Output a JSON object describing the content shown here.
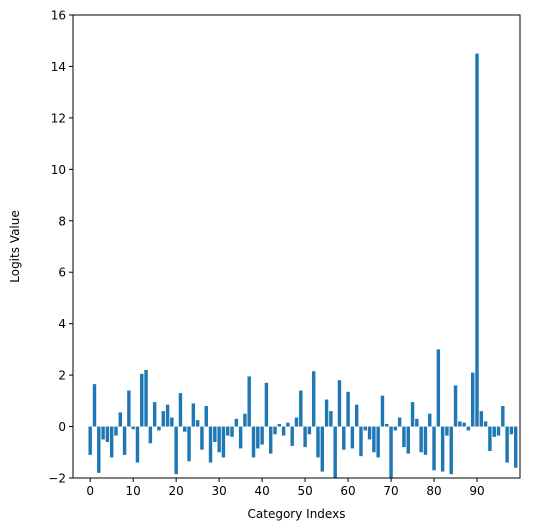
{
  "chart_data": {
    "type": "bar",
    "xlabel": "Category Indexs",
    "ylabel": "Logits Value",
    "ylim": [
      -2,
      16
    ],
    "xlim": [
      -4,
      100
    ],
    "yticks": [
      -2,
      0,
      2,
      4,
      6,
      8,
      10,
      12,
      14,
      16
    ],
    "xticks": [
      0,
      10,
      20,
      30,
      40,
      50,
      60,
      70,
      80,
      90
    ],
    "grid": false,
    "color": "#1f77b4",
    "x": [
      0,
      1,
      2,
      3,
      4,
      5,
      6,
      7,
      8,
      9,
      10,
      11,
      12,
      13,
      14,
      15,
      16,
      17,
      18,
      19,
      20,
      21,
      22,
      23,
      24,
      25,
      26,
      27,
      28,
      29,
      30,
      31,
      32,
      33,
      34,
      35,
      36,
      37,
      38,
      39,
      40,
      41,
      42,
      43,
      44,
      45,
      46,
      47,
      48,
      49,
      50,
      51,
      52,
      53,
      54,
      55,
      56,
      57,
      58,
      59,
      60,
      61,
      62,
      63,
      64,
      65,
      66,
      67,
      68,
      69,
      70,
      71,
      72,
      73,
      74,
      75,
      76,
      77,
      78,
      79,
      80,
      81,
      82,
      83,
      84,
      85,
      86,
      87,
      88,
      89,
      90,
      91,
      92,
      93,
      94,
      95,
      96,
      97,
      98,
      99
    ],
    "values": [
      -1.1,
      1.65,
      -1.8,
      -0.5,
      -0.6,
      -1.2,
      -0.35,
      0.55,
      -1.1,
      1.4,
      -0.1,
      -1.4,
      2.05,
      2.2,
      -0.65,
      0.95,
      -0.15,
      0.6,
      0.85,
      0.35,
      -1.85,
      1.3,
      -0.2,
      -1.35,
      0.9,
      0.25,
      -0.9,
      0.8,
      -1.4,
      -0.6,
      -1.0,
      -1.2,
      -0.35,
      -0.4,
      0.3,
      -0.85,
      0.5,
      1.95,
      -1.2,
      -0.85,
      -0.7,
      1.7,
      -1.05,
      -0.3,
      0.1,
      -0.35,
      0.15,
      -0.75,
      0.35,
      1.4,
      -0.8,
      -0.3,
      2.15,
      -1.2,
      -1.75,
      1.05,
      0.6,
      -2.0,
      1.8,
      -0.9,
      1.35,
      -0.85,
      0.85,
      -1.15,
      -0.15,
      -0.5,
      -1.0,
      -1.2,
      1.2,
      0.1,
      -2.0,
      -0.15,
      0.35,
      -0.8,
      -1.05,
      0.95,
      0.3,
      -1.0,
      -1.1,
      0.5,
      -1.7,
      3.0,
      -1.75,
      -0.35,
      -1.85,
      1.6,
      0.2,
      0.15,
      -0.15,
      2.1,
      14.5,
      0.6,
      0.2,
      -0.95,
      -0.4,
      -0.35,
      0.8,
      -1.4,
      -0.3,
      -1.6
    ]
  }
}
